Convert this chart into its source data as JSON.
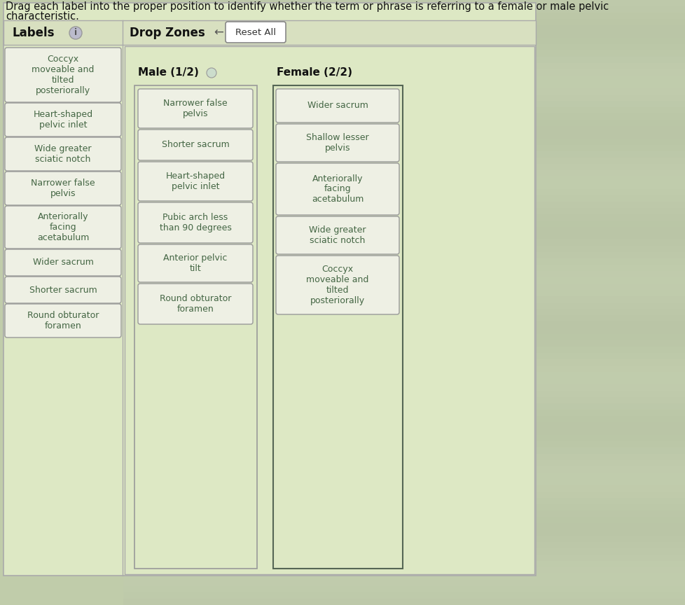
{
  "title_line1": "Drag each label into the proper position to identify whether the term or phrase is referring to a female or male pelvic",
  "title_line2": "characteristic.",
  "bg_color": "#c8d4b0",
  "panel_bg": "#dde8c8",
  "box_bg": "#eef0e4",
  "box_border": "#999999",
  "text_color": "#446644",
  "header_text": "#111111",
  "labels_header": "Labels",
  "info_circle_color": "#cccccc",
  "dropzones_header": "Drop Zones",
  "reset_btn": "Reset All",
  "male_header": "Male (1/2)",
  "female_header": "Female (2/2)",
  "label_items": [
    "Coccyx\nmoveable and\ntilted\nposteriorally",
    "Heart-shaped\npelvic inlet",
    "Wide greater\nsciatic notch",
    "Narrower false\npelvis",
    "Anteriorally\nfacing\nacetabulum",
    "Wider sacrum",
    "Shorter sacrum",
    "Round obturator\nforamen"
  ],
  "label_heights": [
    72,
    42,
    42,
    42,
    55,
    32,
    32,
    42
  ],
  "male_items": [
    "Narrower false\npelvis",
    "Shorter sacrum",
    "Heart-shaped\npelvic inlet",
    "Pubic arch less\nthan 90 degrees",
    "Anterior pelvic\ntilt",
    "Round obturator\nforamen"
  ],
  "male_heights": [
    50,
    38,
    50,
    52,
    48,
    52
  ],
  "female_items": [
    "Wider sacrum",
    "Shallow lesser\npelvis",
    "Anteriorally\nfacing\nacetabulum",
    "Wide greater\nsciatic notch",
    "Coccyx\nmoveable and\ntilted\nposteriorally"
  ],
  "female_heights": [
    42,
    48,
    68,
    48,
    78
  ]
}
